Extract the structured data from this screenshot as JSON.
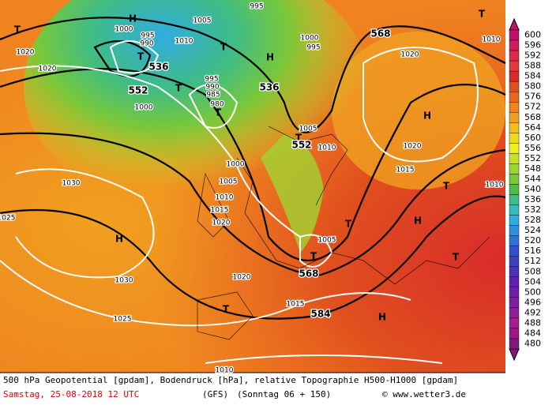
{
  "map": {
    "labels": [
      "H",
      "T",
      "1005",
      "995",
      "1000",
      "995",
      "990",
      "1010",
      "T",
      "536",
      "T",
      "H",
      "1000",
      "995",
      "568",
      "T",
      "1010",
      "1020",
      "1020",
      "552",
      "T",
      "995",
      "990",
      "985",
      "980",
      "T",
      "536",
      "1000",
      "1020",
      "H",
      "1005",
      "T",
      "552",
      "1010",
      "1020",
      "1000",
      "1015",
      "1030",
      "1005",
      "1010",
      "1015",
      "1020",
      "T",
      "1010",
      "1025",
      "H",
      "H",
      "T",
      "1005",
      "T",
      "T",
      "568",
      "1020",
      "1030",
      "T",
      "1015",
      "584",
      "H",
      "1025",
      "1010"
    ]
  },
  "colorbar": {
    "labels": [
      600,
      596,
      592,
      588,
      584,
      580,
      576,
      572,
      568,
      564,
      560,
      556,
      552,
      548,
      544,
      540,
      536,
      532,
      528,
      524,
      520,
      516,
      512,
      508,
      504,
      500,
      496,
      492,
      488,
      484,
      480
    ],
    "colors": [
      "#c0106a",
      "#d01c5c",
      "#dc2a4c",
      "#e63a3a",
      "#d82a2a",
      "#e0501e",
      "#e8661e",
      "#f08220",
      "#f0a020",
      "#f2be1e",
      "#f2d81e",
      "#eef01e",
      "#c8e02a",
      "#a0d432",
      "#78c83a",
      "#52bc44",
      "#40bc84",
      "#34bcbc",
      "#30ace0",
      "#3090e0",
      "#3070d8",
      "#3250cc",
      "#4040c0",
      "#5030b8",
      "#6020b0",
      "#7020a8",
      "#8020a0",
      "#902098",
      "#a02090",
      "#a01888",
      "#801880"
    ]
  },
  "footer": {
    "line1": "500 hPa Geopotential [gpdam], Bodendruck [hPa], relative Topographie H500-H1000 [gpdam]",
    "date": "Samstag, 25-08-2018  12 UTC",
    "model": "(GFS)",
    "forecast": "(Sonntag 06 + 150)",
    "credit": "© www.wetter3.de"
  }
}
